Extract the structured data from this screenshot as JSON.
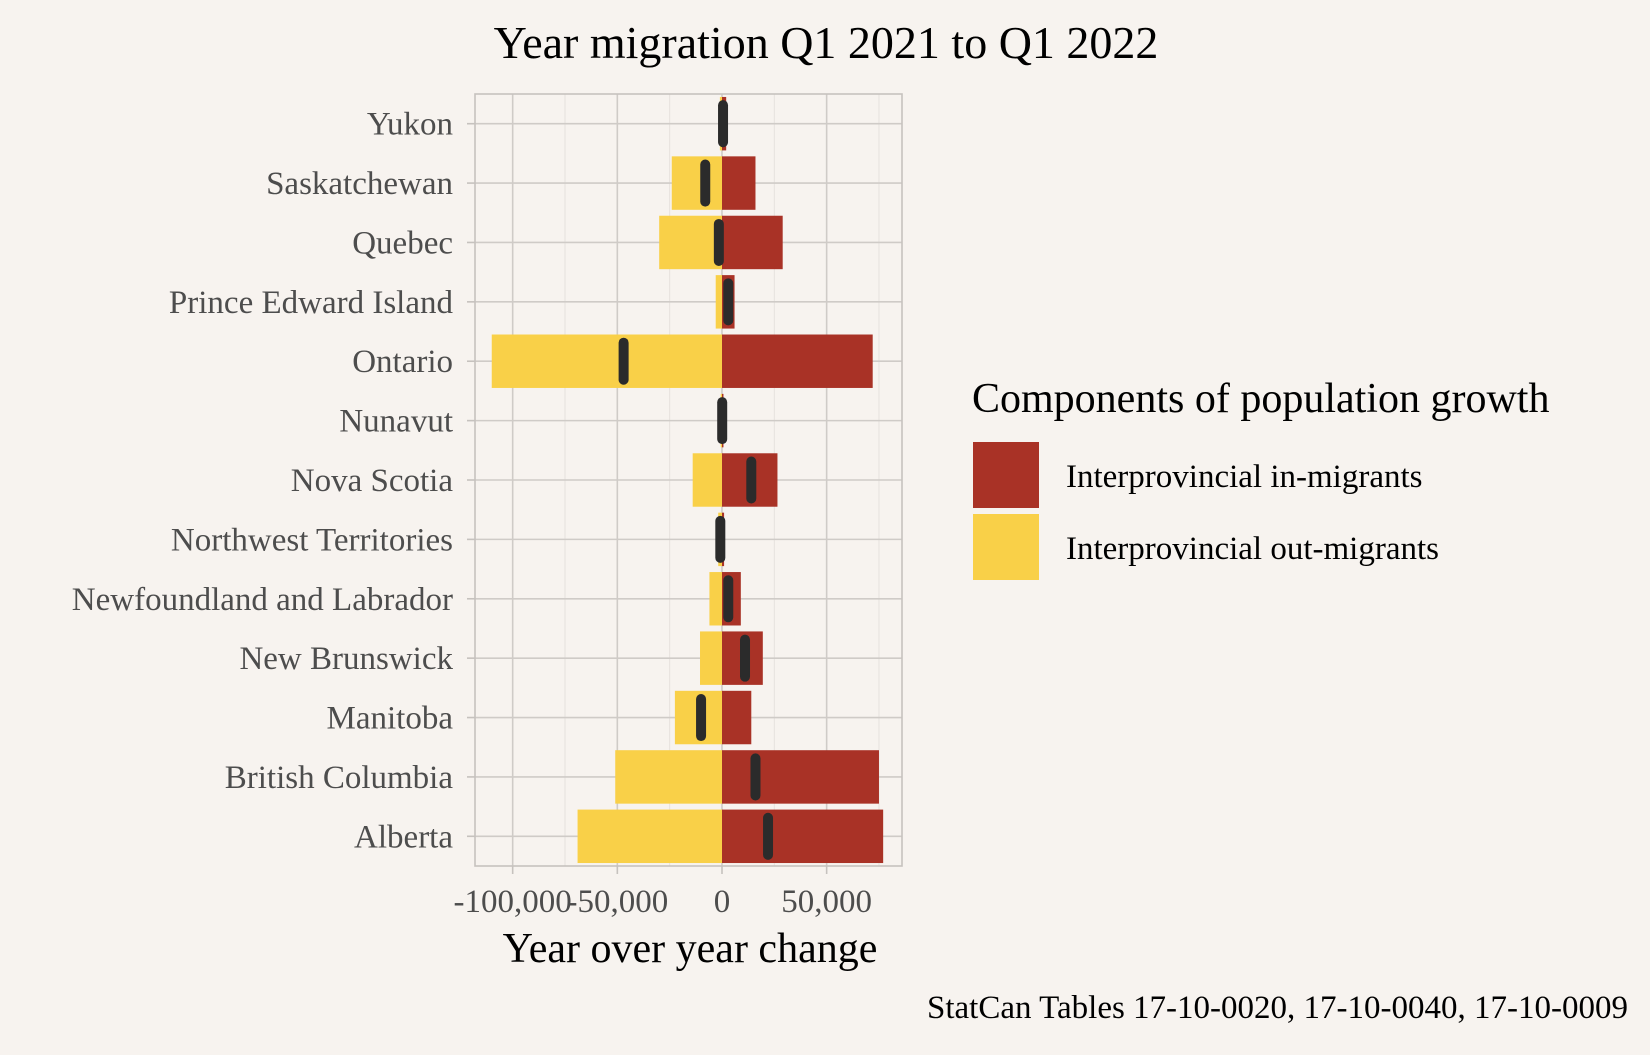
{
  "chart_data": {
    "type": "bar",
    "title": "Year migration Q1 2021 to Q1 2022",
    "xlabel": "Year over year change",
    "ylabel": "",
    "caption": "StatCan Tables 17-10-0020, 17-10-0040, 17-10-0009",
    "xlim": [
      -118000,
      86000
    ],
    "x_ticks": [
      -100000,
      -50000,
      0,
      50000
    ],
    "x_tick_labels": [
      "-100,000",
      "-50,000",
      "0",
      "50,000"
    ],
    "grid": true,
    "legend": {
      "title": "Components of population growth",
      "position": "right"
    },
    "categories": [
      "Yukon",
      "Saskatchewan",
      "Quebec",
      "Prince Edward Island",
      "Ontario",
      "Nunavut",
      "Nova Scotia",
      "Northwest Territories",
      "Newfoundland and Labrador",
      "New Brunswick",
      "Manitoba",
      "British Columbia",
      "Alberta"
    ],
    "series": [
      {
        "name": "Interprovincial in-migrants",
        "color": "#a93226",
        "values": [
          2000,
          16000,
          29000,
          6000,
          72000,
          700,
          26500,
          1000,
          9000,
          19500,
          14000,
          75000,
          77000
        ]
      },
      {
        "name": "Interprovincial out-migrants",
        "color": "#f9d048",
        "values": [
          -1000,
          -24000,
          -30000,
          -3000,
          -110000,
          -600,
          -14000,
          -1800,
          -6000,
          -10500,
          -22500,
          -51000,
          -69000
        ]
      }
    ],
    "net_marker": {
      "color": "#2b2b2b",
      "values": [
        500,
        -8000,
        -1500,
        3000,
        -47000,
        100,
        14000,
        -800,
        3000,
        11000,
        -10000,
        16000,
        22000
      ]
    }
  }
}
